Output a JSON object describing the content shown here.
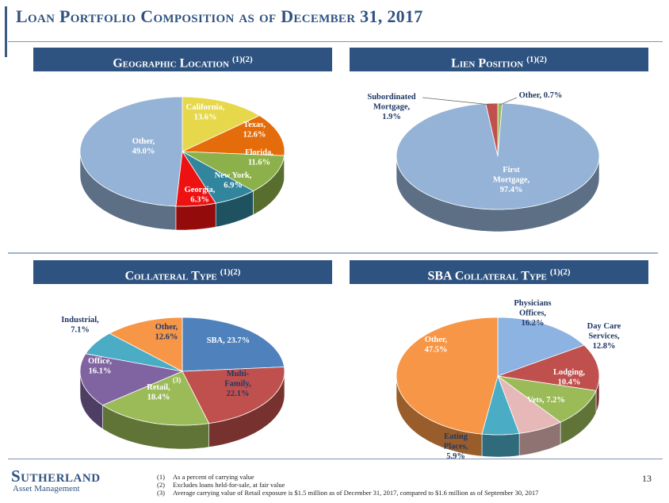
{
  "page": {
    "title": "Loan Portfolio Composition as of December 31, 2017",
    "page_number": "13"
  },
  "panels": {
    "geo": {
      "title": "Geographic Location",
      "sup": "(1)(2)"
    },
    "lien": {
      "title": "Lien Position",
      "sup": "(1)(2)"
    },
    "collateral": {
      "title": "Collateral Type",
      "sup": "(1)(2)"
    },
    "sba": {
      "title": "SBA Collateral Type",
      "sup": "(1)(2)"
    }
  },
  "footnotes": [
    {
      "num": "(1)",
      "text": "As a percent of carrying value"
    },
    {
      "num": "(2)",
      "text": "Excludes loans held-for-sale, at fair value"
    },
    {
      "num": "(3)",
      "text": "Average carrying value of Retail exposure is $1.5 million as of December 31, 2017, compared to $1.6 million as of September 30, 2017"
    }
  ],
  "logo": {
    "name": "Sutherland",
    "sub": "Asset Management"
  },
  "chart_data": [
    {
      "type": "pie",
      "title": "Geographic Location (1)(2)",
      "slices": [
        {
          "label": "California",
          "value": 13.6,
          "value_label": "13.6%",
          "color": "#e6d84a"
        },
        {
          "label": "Texas",
          "value": 12.6,
          "value_label": "12.6%",
          "color": "#e46c0a"
        },
        {
          "label": "Florida",
          "value": 11.6,
          "value_label": "11.6%",
          "color": "#8db14a"
        },
        {
          "label": "New York",
          "value": 6.9,
          "value_label": "6.9%",
          "color": "#31859c"
        },
        {
          "label": "Georgia",
          "value": 6.3,
          "value_label": "6.3%",
          "color": "#ee1111"
        },
        {
          "label": "Other",
          "value": 49.0,
          "value_label": "49.0%",
          "color": "#95b3d7"
        }
      ]
    },
    {
      "type": "pie",
      "title": "Lien Position (1)(2)",
      "slices": [
        {
          "label": "Other",
          "value": 0.7,
          "value_label": "0.7%",
          "color": "#9bbb59"
        },
        {
          "label": "First Mortgage",
          "value": 97.4,
          "value_label": "97.4%",
          "color": "#95b3d7"
        },
        {
          "label": "Subordinated Mortgage",
          "value": 1.9,
          "value_label": "1.9%",
          "color": "#c0504d"
        }
      ]
    },
    {
      "type": "pie",
      "title": "Collateral Type (1)(2)",
      "slices": [
        {
          "label": "SBA",
          "value": 23.7,
          "value_label": "23.7%",
          "color": "#4f81bd"
        },
        {
          "label": "Multi-Family",
          "value": 22.1,
          "value_label": "22.1%",
          "color": "#c0504d"
        },
        {
          "label": "Retail",
          "value": 18.4,
          "value_label": "18.4%",
          "note": "(3)",
          "color": "#9bbb59"
        },
        {
          "label": "Office",
          "value": 16.1,
          "value_label": "16.1%",
          "color": "#8064a2"
        },
        {
          "label": "Industrial",
          "value": 7.1,
          "value_label": "7.1%",
          "color": "#4bacc6"
        },
        {
          "label": "Other",
          "value": 12.6,
          "value_label": "12.6%",
          "color": "#f79646"
        }
      ]
    },
    {
      "type": "pie",
      "title": "SBA Collateral Type (1)(2)",
      "slices": [
        {
          "label": "Physicians Offices",
          "value": 16.2,
          "value_label": "16.2%",
          "color": "#8db3e2"
        },
        {
          "label": "Day Care Services",
          "value": 12.8,
          "value_label": "12.8%",
          "color": "#c0504d"
        },
        {
          "label": "Lodging",
          "value": 10.4,
          "value_label": "10.4%",
          "color": "#9bbb59"
        },
        {
          "label": "Vets",
          "value": 7.2,
          "value_label": "7.2%",
          "color": "#e6b9b8"
        },
        {
          "label": "Eating Places",
          "value": 5.9,
          "value_label": "5.9%",
          "color": "#4bacc6"
        },
        {
          "label": "Other",
          "value": 47.5,
          "value_label": "47.5%",
          "color": "#f79646"
        }
      ]
    }
  ]
}
